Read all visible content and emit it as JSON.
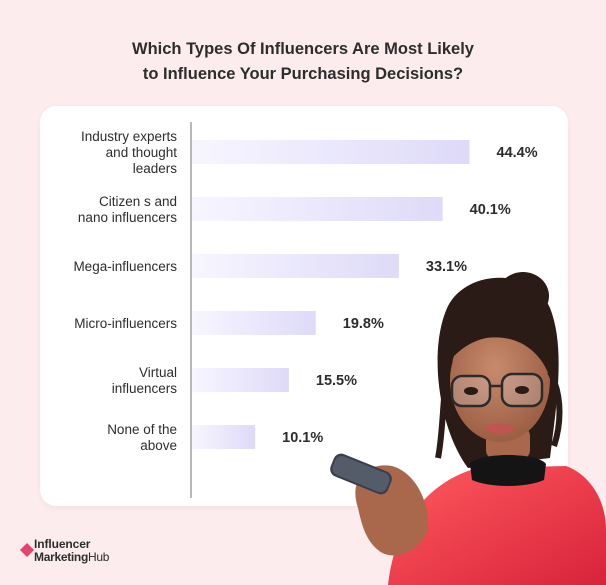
{
  "title_lines": [
    "Which Types Of Influencers Are Most Likely",
    "to Influence Your Purchasing Decisions?"
  ],
  "chart_data": {
    "type": "bar",
    "orientation": "horizontal",
    "title": "Which Types Of Influencers Are Most Likely to Influence Your Purchasing Decisions?",
    "categories": [
      "Industry experts and thought leaders",
      "Citizen s and nano influencers",
      "Mega-influencers",
      "Micro-influencers",
      "Virtual influencers",
      "None of the above"
    ],
    "category_lines": [
      [
        "Industry experts",
        "and thought",
        "leaders"
      ],
      [
        "Citizen s and",
        "nano influencers"
      ],
      [
        "Mega-influencers"
      ],
      [
        "Micro-influencers"
      ],
      [
        "Virtual",
        "influencers"
      ],
      [
        "None of the",
        "above"
      ]
    ],
    "values": [
      44.4,
      40.1,
      33.1,
      19.8,
      15.5,
      10.1
    ],
    "value_labels": [
      "44.4%",
      "40.1%",
      "33.1%",
      "19.8%",
      "15.5%",
      "10.1%"
    ],
    "unit": "%",
    "xlim": [
      0,
      45
    ],
    "xlabel": "",
    "ylabel": "",
    "grid": false,
    "bar_gradient": [
      "#f7f6ff",
      "#dedaf8"
    ]
  },
  "brand": {
    "line1": "Influencer",
    "line2_bold": "Marketing",
    "line2_rest": "Hub",
    "accent": "#e8436e"
  },
  "colors": {
    "background": "#fcecee",
    "card": "#ffffff",
    "text": "#2d2d2d",
    "axis": "#7a7a7a"
  }
}
